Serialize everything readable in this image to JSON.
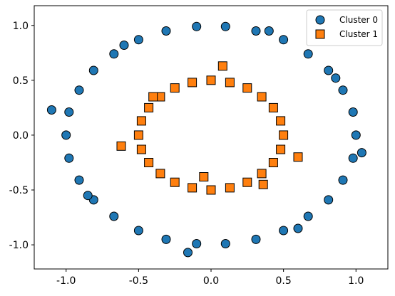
{
  "chart_data": {
    "type": "scatter",
    "title": "",
    "xlabel": "",
    "ylabel": "",
    "xlim": [
      -1.22,
      1.22
    ],
    "ylim": [
      -1.22,
      1.18
    ],
    "xticks": [
      -1.0,
      -0.5,
      0.0,
      0.5,
      1.0
    ],
    "yticks": [
      1.0,
      0.5,
      0.0,
      -0.5,
      -1.0
    ],
    "xtick_labels": [
      "-1.0",
      "-0.5",
      "0.0",
      "0.5",
      "1.0"
    ],
    "ytick_labels": [
      "1.0",
      "0.5",
      "0.0",
      "-0.5",
      "-1.0"
    ],
    "grid": false,
    "legend": {
      "placement": "top-right",
      "entries": [
        "Cluster 0",
        "Cluster 1"
      ]
    },
    "series": [
      {
        "name": "Cluster 0",
        "marker": "circle",
        "color": "#1f77b4",
        "points": [
          [
            1.0,
            0.0
          ],
          [
            0.98,
            0.21
          ],
          [
            0.91,
            0.41
          ],
          [
            0.81,
            0.59
          ],
          [
            0.67,
            0.74
          ],
          [
            0.5,
            0.87
          ],
          [
            0.31,
            0.95
          ],
          [
            0.1,
            0.99
          ],
          [
            -0.1,
            0.99
          ],
          [
            -0.31,
            0.95
          ],
          [
            -0.5,
            0.87
          ],
          [
            -0.67,
            0.74
          ],
          [
            -0.81,
            0.59
          ],
          [
            -0.91,
            0.41
          ],
          [
            -0.98,
            0.21
          ],
          [
            -1.0,
            0.0
          ],
          [
            -0.98,
            -0.21
          ],
          [
            -0.91,
            -0.41
          ],
          [
            -0.81,
            -0.59
          ],
          [
            -0.67,
            -0.74
          ],
          [
            -0.5,
            -0.87
          ],
          [
            -0.31,
            -0.95
          ],
          [
            -0.1,
            -0.99
          ],
          [
            0.1,
            -0.99
          ],
          [
            0.31,
            -0.95
          ],
          [
            0.5,
            -0.87
          ],
          [
            0.67,
            -0.74
          ],
          [
            0.81,
            -0.59
          ],
          [
            0.91,
            -0.41
          ],
          [
            0.98,
            -0.21
          ],
          [
            -1.1,
            0.23
          ],
          [
            0.86,
            0.52
          ],
          [
            0.6,
            -0.85
          ],
          [
            -0.16,
            -1.07
          ],
          [
            1.04,
            -0.16
          ],
          [
            -0.85,
            -0.55
          ],
          [
            0.4,
            0.95
          ],
          [
            -0.6,
            0.82
          ]
        ]
      },
      {
        "name": "Cluster 1",
        "marker": "square",
        "color": "#ff7f0e",
        "points": [
          [
            0.5,
            0.0
          ],
          [
            0.48,
            0.13
          ],
          [
            0.43,
            0.25
          ],
          [
            0.35,
            0.35
          ],
          [
            0.25,
            0.43
          ],
          [
            0.13,
            0.48
          ],
          [
            0.0,
            0.5
          ],
          [
            -0.13,
            0.48
          ],
          [
            -0.25,
            0.43
          ],
          [
            -0.35,
            0.35
          ],
          [
            -0.43,
            0.25
          ],
          [
            -0.48,
            0.13
          ],
          [
            -0.5,
            0.0
          ],
          [
            -0.48,
            -0.13
          ],
          [
            -0.43,
            -0.25
          ],
          [
            -0.35,
            -0.35
          ],
          [
            -0.25,
            -0.43
          ],
          [
            -0.13,
            -0.48
          ],
          [
            0.0,
            -0.5
          ],
          [
            0.13,
            -0.48
          ],
          [
            0.25,
            -0.43
          ],
          [
            0.35,
            -0.35
          ],
          [
            0.43,
            -0.25
          ],
          [
            0.48,
            -0.13
          ],
          [
            0.08,
            0.63
          ],
          [
            -0.05,
            -0.38
          ],
          [
            0.6,
            -0.2
          ],
          [
            -0.62,
            -0.1
          ],
          [
            -0.4,
            0.35
          ],
          [
            0.36,
            -0.45
          ]
        ]
      }
    ]
  }
}
